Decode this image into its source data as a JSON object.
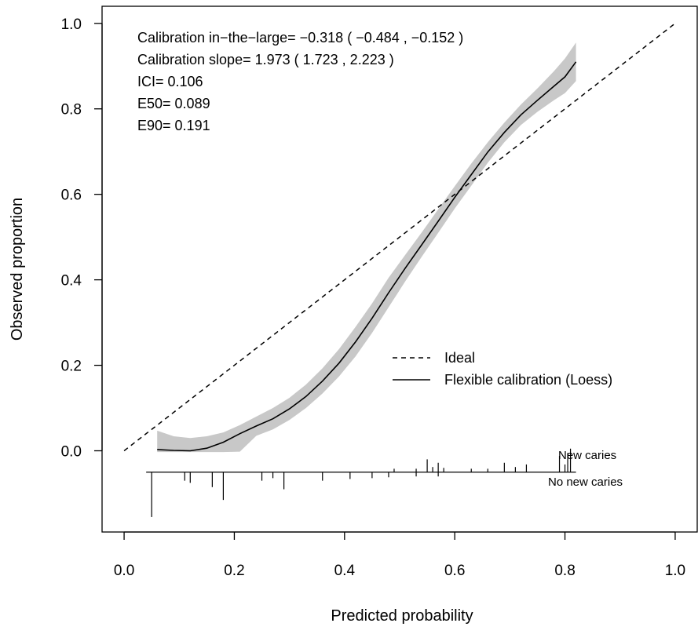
{
  "chart_data": {
    "type": "line",
    "xlabel": "Predicted probability",
    "ylabel": "Observed proportion",
    "xlim": [
      -0.04,
      1.04
    ],
    "ylim": [
      -0.19,
      1.04
    ],
    "xticks": [
      0.0,
      0.2,
      0.4,
      0.6,
      0.8,
      1.0
    ],
    "xtick_labels": [
      "0.0",
      "0.2",
      "0.4",
      "0.6",
      "0.8",
      "1.0"
    ],
    "yticks": [
      0.0,
      0.2,
      0.4,
      0.6,
      0.8,
      1.0
    ],
    "ytick_labels": [
      "0.0",
      "0.2",
      "0.4",
      "0.6",
      "0.8",
      "1.0"
    ],
    "grid": false,
    "stats": [
      "Calibration in−the−large= −0.318 ( −0.484 , −0.152 )",
      "Calibration slope= 1.973 ( 1.723 , 2.223 )",
      "ICI= 0.106",
      "E50= 0.089",
      "E90= 0.191"
    ],
    "legend": {
      "position": "right",
      "items": [
        {
          "label": "Ideal",
          "style": "dashed"
        },
        {
          "label": "Flexible calibration (Loess)",
          "style": "solid"
        }
      ]
    },
    "ideal_line": {
      "x": [
        0,
        1
      ],
      "y": [
        0,
        1
      ]
    },
    "loess": {
      "x": [
        0.06,
        0.09,
        0.12,
        0.15,
        0.18,
        0.21,
        0.24,
        0.27,
        0.3,
        0.33,
        0.36,
        0.39,
        0.42,
        0.45,
        0.48,
        0.51,
        0.54,
        0.57,
        0.6,
        0.63,
        0.66,
        0.69,
        0.72,
        0.75,
        0.78,
        0.8,
        0.82
      ],
      "y": [
        0.003,
        0.001,
        0.0,
        0.006,
        0.02,
        0.04,
        0.058,
        0.075,
        0.098,
        0.127,
        0.163,
        0.205,
        0.255,
        0.31,
        0.37,
        0.427,
        0.482,
        0.537,
        0.593,
        0.646,
        0.699,
        0.745,
        0.786,
        0.82,
        0.853,
        0.875,
        0.91
      ],
      "band_upper": [
        0.047,
        0.034,
        0.03,
        0.034,
        0.043,
        0.06,
        0.08,
        0.1,
        0.124,
        0.155,
        0.193,
        0.238,
        0.29,
        0.345,
        0.405,
        0.458,
        0.511,
        0.565,
        0.619,
        0.672,
        0.722,
        0.768,
        0.81,
        0.848,
        0.888,
        0.918,
        0.955
      ],
      "band_lower": [
        -0.003,
        -0.003,
        -0.003,
        -0.003,
        -0.003,
        -0.002,
        0.035,
        0.05,
        0.072,
        0.1,
        0.134,
        0.174,
        0.221,
        0.276,
        0.336,
        0.396,
        0.454,
        0.51,
        0.567,
        0.62,
        0.674,
        0.722,
        0.762,
        0.793,
        0.82,
        0.837,
        0.865
      ]
    },
    "rug": {
      "baseline_y": -0.05,
      "x_start": 0.04,
      "x_end": 0.82,
      "events_label": "New caries",
      "nonevents_label": "No new caries",
      "events": [
        {
          "x": 0.49,
          "h": 0.008
        },
        {
          "x": 0.53,
          "h": 0.008
        },
        {
          "x": 0.55,
          "h": 0.03
        },
        {
          "x": 0.56,
          "h": 0.012
        },
        {
          "x": 0.57,
          "h": 0.022
        },
        {
          "x": 0.58,
          "h": 0.01
        },
        {
          "x": 0.63,
          "h": 0.008
        },
        {
          "x": 0.66,
          "h": 0.008
        },
        {
          "x": 0.69,
          "h": 0.022
        },
        {
          "x": 0.71,
          "h": 0.012
        },
        {
          "x": 0.73,
          "h": 0.018
        },
        {
          "x": 0.79,
          "h": 0.038
        },
        {
          "x": 0.8,
          "h": 0.018
        },
        {
          "x": 0.805,
          "h": 0.045
        },
        {
          "x": 0.81,
          "h": 0.055
        }
      ],
      "nonevents": [
        {
          "x": 0.05,
          "h": 0.105
        },
        {
          "x": 0.11,
          "h": 0.02
        },
        {
          "x": 0.12,
          "h": 0.025
        },
        {
          "x": 0.16,
          "h": 0.035
        },
        {
          "x": 0.18,
          "h": 0.065
        },
        {
          "x": 0.25,
          "h": 0.02
        },
        {
          "x": 0.27,
          "h": 0.014
        },
        {
          "x": 0.29,
          "h": 0.04
        },
        {
          "x": 0.36,
          "h": 0.02
        },
        {
          "x": 0.41,
          "h": 0.016
        },
        {
          "x": 0.45,
          "h": 0.014
        },
        {
          "x": 0.48,
          "h": 0.012
        },
        {
          "x": 0.53,
          "h": 0.01
        },
        {
          "x": 0.57,
          "h": 0.01
        }
      ]
    }
  }
}
